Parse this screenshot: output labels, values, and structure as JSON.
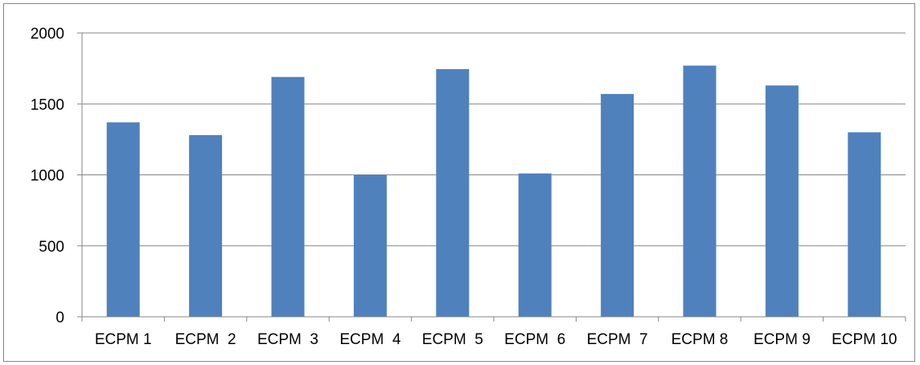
{
  "chart_data": {
    "type": "bar",
    "title": "",
    "xlabel": "",
    "ylabel": "",
    "categories": [
      "ECPM 1",
      "ECPM  2",
      "ECPM  3",
      "ECPM  4",
      "ECPM  5",
      "ECPM  6",
      "ECPM  7",
      "ECPM 8",
      "ECPM 9",
      "ECPM 10"
    ],
    "values": [
      1370,
      1280,
      1690,
      1000,
      1745,
      1010,
      1570,
      1770,
      1630,
      1300
    ],
    "ylim": [
      0,
      2000
    ],
    "yticks": [
      "0",
      "500",
      "1000",
      "1500",
      "2000"
    ],
    "grid": true,
    "legend": "none",
    "colors": {
      "bar": "#4F81BD",
      "grid": "#868686",
      "axis": "#868686"
    }
  }
}
